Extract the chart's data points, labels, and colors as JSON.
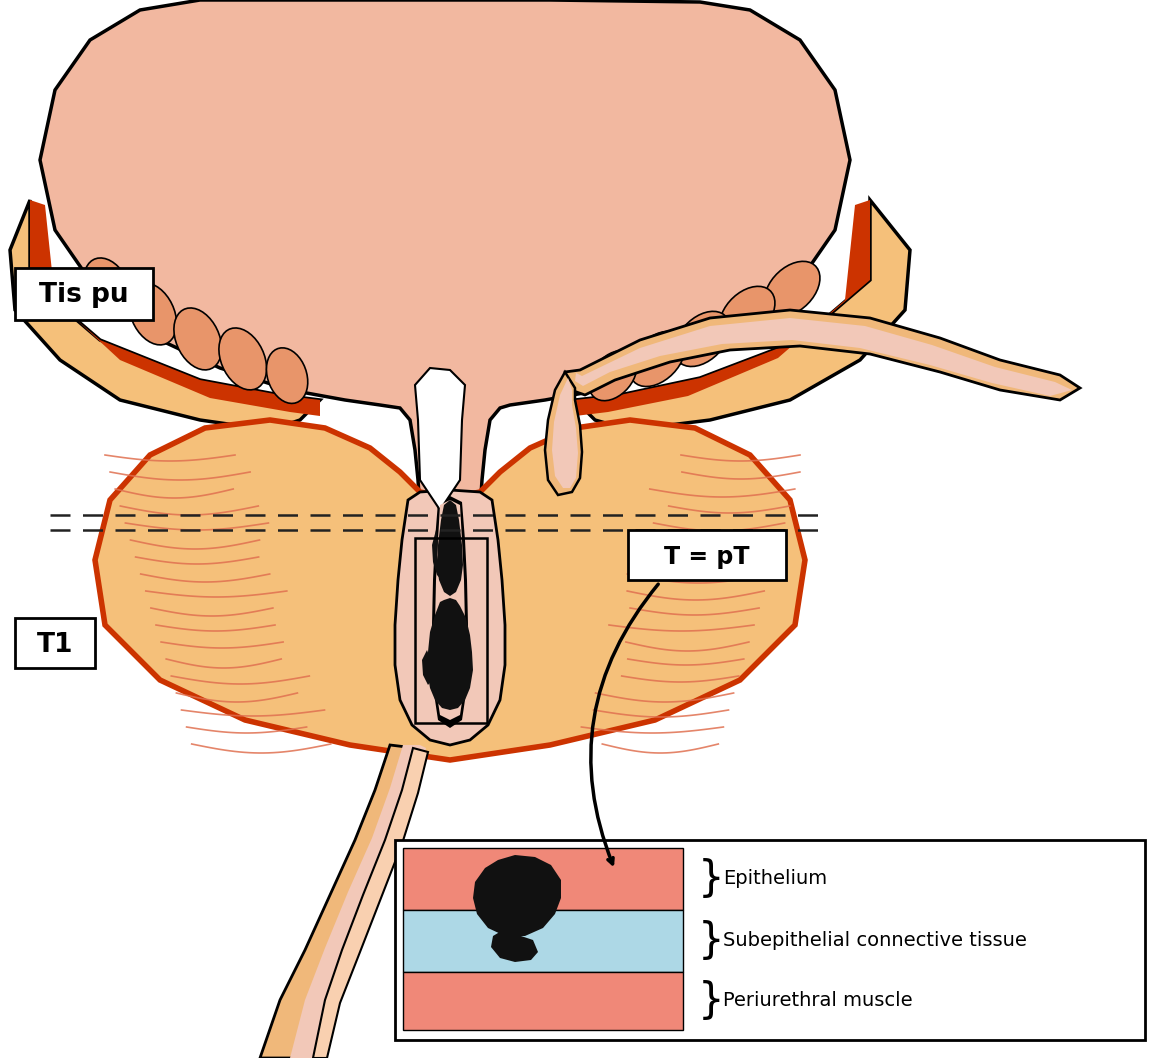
{
  "bg_color": "#ffffff",
  "organ_fill": "#F5C07A",
  "organ_stroke": "#CC3300",
  "bladder_pink": "#F2B8A0",
  "bladder_gradient_top": "#F5C8C8",
  "rugae_color": "#E8956A",
  "dark_lesion": "#111111",
  "tissue_lines_color": "#E07050",
  "dashed_line_color": "#222222",
  "seminal_fill": "#F0B87A",
  "seminal_inner": "#F2C8B8",
  "label_tis_pu": "Tis pu",
  "label_t1": "T1",
  "label_t_pt": "T = pT",
  "epi_color": "#F08878",
  "sub_color": "#ADD8E6",
  "peri_color": "#F08878",
  "label_epi": "Epithelium",
  "label_sub": "Subepithelial connective tissue",
  "label_peri": "Periurethral muscle"
}
